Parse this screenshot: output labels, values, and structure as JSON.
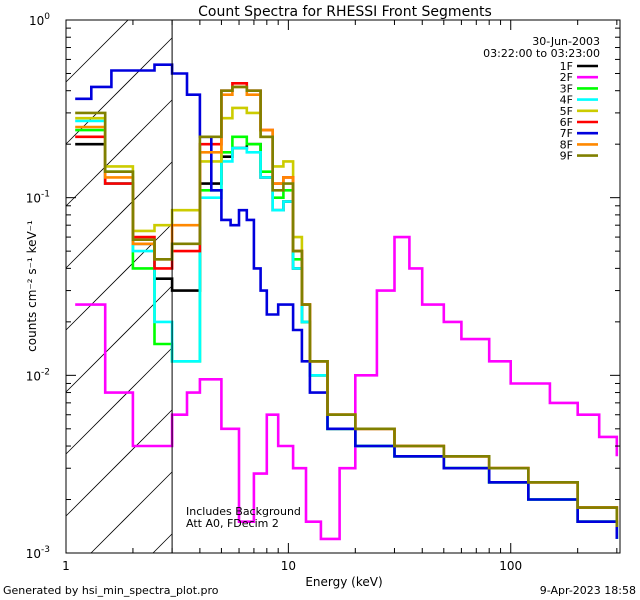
{
  "chart_data": {
    "type": "line",
    "title": "Count Spectra for RHESSI Front Segments",
    "xlabel": "Energy (keV)",
    "ylabel": "counts cm⁻² s⁻¹ keV⁻¹",
    "x_scale": "log",
    "y_scale": "log",
    "xlim": [
      1.0,
      310.0
    ],
    "ylim": [
      0.001,
      1.0
    ],
    "x_ticks": [
      {
        "value": 1,
        "label": "1"
      },
      {
        "value": 10,
        "label": "10"
      },
      {
        "value": 100,
        "label": "100"
      }
    ],
    "y_ticks": [
      {
        "value": 1,
        "base": "10",
        "exp": "0"
      },
      {
        "value": 0.1,
        "base": "10",
        "exp": "-1"
      },
      {
        "value": 0.01,
        "base": "10",
        "exp": "-2"
      },
      {
        "value": 0.001,
        "base": "10",
        "exp": "-3"
      }
    ],
    "date_label": "30-Jun-2003",
    "time_range": "03:22:00 to 03:23:00",
    "annotations": [
      "Includes Background",
      "Att A0, FDecim 2"
    ],
    "shaded_region_kev": [
      1.0,
      3.0
    ],
    "legend_position": "top-right",
    "series": [
      {
        "name": "1F",
        "color": "#000000",
        "x": [
          1.1,
          1.5,
          2.0,
          2.5,
          3.0,
          4.0,
          5.0,
          5.6,
          6.5,
          7.5,
          8.5,
          9.5,
          10.5,
          11.5,
          12.5,
          15,
          20,
          30,
          50,
          80,
          120,
          200,
          300
        ],
        "y": [
          0.2,
          0.12,
          0.055,
          0.035,
          0.03,
          0.12,
          0.17,
          0.19,
          0.2,
          0.13,
          0.085,
          0.095,
          0.04,
          0.02,
          0.01,
          0.005,
          0.004,
          0.0035,
          0.003,
          0.0025,
          0.002,
          0.0015,
          0.0012
        ]
      },
      {
        "name": "2F",
        "color": "#ff00ff",
        "x": [
          1.1,
          1.5,
          2.0,
          2.5,
          3.0,
          3.5,
          4.0,
          5.0,
          6.0,
          7.0,
          8.0,
          9.0,
          10.5,
          12,
          14,
          17,
          20,
          25,
          30,
          35,
          40,
          50,
          60,
          80,
          100,
          150,
          200,
          250,
          300
        ],
        "y": [
          0.025,
          0.008,
          0.004,
          0.004,
          0.006,
          0.008,
          0.0095,
          0.005,
          0.0015,
          0.0028,
          0.006,
          0.004,
          0.003,
          0.0015,
          0.0012,
          0.003,
          0.01,
          0.03,
          0.06,
          0.04,
          0.025,
          0.02,
          0.016,
          0.012,
          0.009,
          0.007,
          0.006,
          0.0045,
          0.0035
        ]
      },
      {
        "name": "3F",
        "color": "#00ff00",
        "x": [
          1.1,
          1.5,
          2.0,
          2.5,
          3.0,
          4.0,
          5.0,
          5.6,
          6.5,
          7.5,
          8.5,
          9.5,
          10.5,
          11.5,
          12.5,
          15,
          20,
          30,
          50,
          80,
          120,
          200,
          300
        ],
        "y": [
          0.24,
          0.14,
          0.04,
          0.015,
          0.012,
          0.11,
          0.18,
          0.22,
          0.2,
          0.14,
          0.1,
          0.11,
          0.045,
          0.02,
          0.01,
          0.005,
          0.004,
          0.0035,
          0.003,
          0.0025,
          0.002,
          0.0015,
          0.0012
        ]
      },
      {
        "name": "4F",
        "color": "#00ffff",
        "x": [
          1.1,
          1.5,
          2.0,
          2.5,
          3.0,
          4.0,
          5.0,
          5.6,
          6.5,
          7.5,
          8.5,
          9.5,
          10.5,
          11.5,
          12.5,
          15,
          20,
          30,
          50,
          80,
          120,
          200,
          300
        ],
        "y": [
          0.27,
          0.12,
          0.05,
          0.02,
          0.012,
          0.1,
          0.16,
          0.19,
          0.18,
          0.13,
          0.085,
          0.095,
          0.04,
          0.02,
          0.01,
          0.005,
          0.004,
          0.0035,
          0.003,
          0.0025,
          0.002,
          0.0015,
          0.0012
        ]
      },
      {
        "name": "5F",
        "color": "#cccc00",
        "x": [
          1.1,
          1.5,
          2.0,
          2.5,
          3.0,
          4.0,
          5.0,
          5.6,
          6.5,
          7.5,
          8.5,
          9.5,
          10.5,
          11.5,
          12.5,
          15,
          20,
          30,
          50,
          80,
          120,
          200,
          300
        ],
        "y": [
          0.28,
          0.15,
          0.065,
          0.07,
          0.085,
          0.16,
          0.28,
          0.32,
          0.3,
          0.22,
          0.15,
          0.16,
          0.06,
          0.025,
          0.012,
          0.006,
          0.005,
          0.004,
          0.0035,
          0.003,
          0.0025,
          0.0018,
          0.0014
        ]
      },
      {
        "name": "6F",
        "color": "#ff0000",
        "x": [
          1.1,
          1.5,
          2.0,
          2.5,
          3.0,
          4.0,
          5.0,
          5.6,
          6.5,
          7.5,
          8.5,
          9.5,
          10.5,
          11.5,
          12.5,
          15,
          20,
          30,
          50,
          80,
          120,
          200,
          300
        ],
        "y": [
          0.22,
          0.12,
          0.06,
          0.04,
          0.05,
          0.2,
          0.4,
          0.44,
          0.4,
          0.24,
          0.12,
          0.13,
          0.05,
          0.025,
          0.012,
          0.006,
          0.005,
          0.004,
          0.0035,
          0.003,
          0.0025,
          0.0018,
          0.0014
        ]
      },
      {
        "name": "7F",
        "color": "#0000dd",
        "x": [
          1.1,
          1.3,
          1.6,
          2.0,
          2.5,
          3.0,
          3.5,
          4.0,
          4.5,
          5.0,
          5.5,
          6.0,
          6.5,
          7.0,
          7.5,
          8.0,
          9.0,
          10.5,
          11.5,
          12.5,
          15,
          20,
          30,
          50,
          80,
          120,
          200,
          300
        ],
        "y": [
          0.36,
          0.42,
          0.52,
          0.52,
          0.56,
          0.5,
          0.38,
          0.22,
          0.11,
          0.075,
          0.07,
          0.085,
          0.075,
          0.04,
          0.03,
          0.022,
          0.025,
          0.018,
          0.012,
          0.008,
          0.005,
          0.004,
          0.0035,
          0.003,
          0.0025,
          0.002,
          0.0015,
          0.0012
        ]
      },
      {
        "name": "8F",
        "color": "#ff8800",
        "x": [
          1.1,
          1.5,
          2.0,
          2.5,
          3.0,
          4.0,
          5.0,
          5.6,
          6.5,
          7.5,
          8.5,
          9.5,
          10.5,
          11.5,
          12.5,
          15,
          20,
          30,
          50,
          80,
          120,
          200,
          300
        ],
        "y": [
          0.25,
          0.13,
          0.055,
          0.045,
          0.07,
          0.18,
          0.38,
          0.42,
          0.38,
          0.24,
          0.12,
          0.13,
          0.05,
          0.025,
          0.012,
          0.006,
          0.005,
          0.004,
          0.0035,
          0.003,
          0.0025,
          0.0018,
          0.0014
        ]
      },
      {
        "name": "9F",
        "color": "#808000",
        "x": [
          1.1,
          1.5,
          2.0,
          2.5,
          3.0,
          4.0,
          5.0,
          5.6,
          6.5,
          7.5,
          8.5,
          9.5,
          10.5,
          11.5,
          12.5,
          15,
          20,
          30,
          50,
          80,
          120,
          200,
          300
        ],
        "y": [
          0.3,
          0.14,
          0.058,
          0.045,
          0.055,
          0.22,
          0.4,
          0.42,
          0.4,
          0.22,
          0.11,
          0.12,
          0.05,
          0.025,
          0.012,
          0.006,
          0.005,
          0.004,
          0.0035,
          0.003,
          0.0025,
          0.0018,
          0.0014
        ]
      }
    ]
  },
  "footer": {
    "generated_by": "Generated by hsi_min_spectra_plot.pro",
    "timestamp": "9-Apr-2023 18:58"
  }
}
